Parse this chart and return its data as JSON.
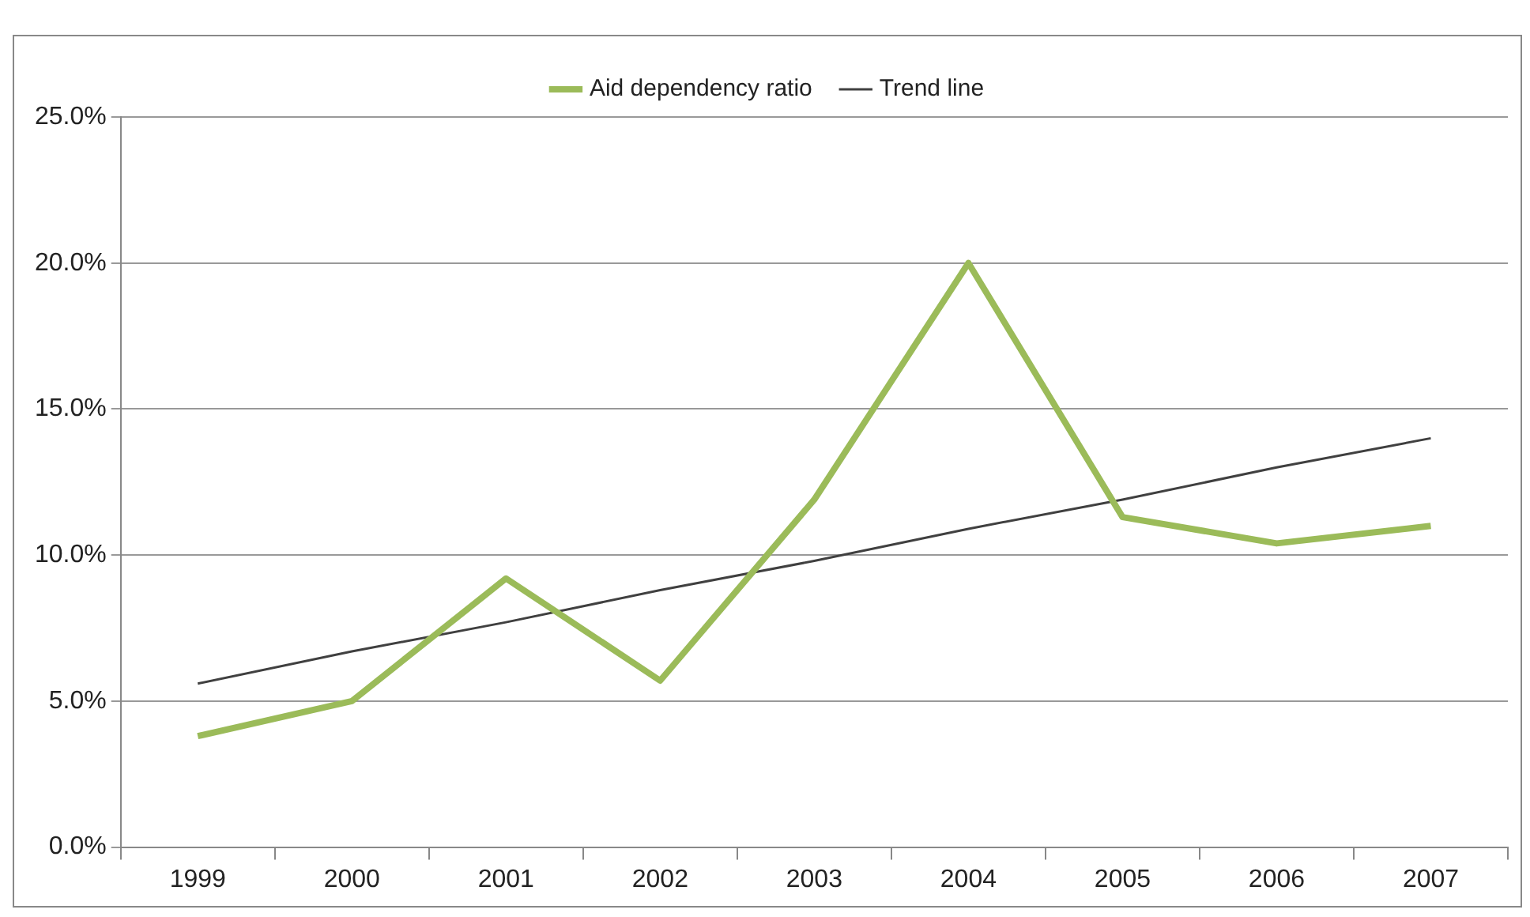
{
  "chart_data": {
    "type": "line",
    "categories": [
      "1999",
      "2000",
      "2001",
      "2002",
      "2003",
      "2004",
      "2005",
      "2006",
      "2007"
    ],
    "series": [
      {
        "name": "Aid dependency ratio",
        "color": "#9bbb59",
        "values": [
          3.8,
          5.0,
          9.2,
          5.7,
          11.9,
          20.0,
          11.3,
          10.4,
          11.0
        ]
      },
      {
        "name": "Trend line",
        "color": "#404040",
        "values": [
          5.6,
          6.7,
          7.7,
          8.8,
          9.8,
          10.9,
          11.9,
          13.0,
          14.0
        ]
      }
    ],
    "ylim": [
      0,
      25
    ],
    "yticks": [
      {
        "value": 0,
        "label": "0.0%"
      },
      {
        "value": 5,
        "label": "5.0%"
      },
      {
        "value": 10,
        "label": "10.0%"
      },
      {
        "value": 15,
        "label": "15.0%"
      },
      {
        "value": 20,
        "label": "20.0%"
      },
      {
        "value": 25,
        "label": "25.0%"
      }
    ],
    "grid": "y",
    "legend": "top",
    "marker": "none",
    "line_style": "solid"
  }
}
